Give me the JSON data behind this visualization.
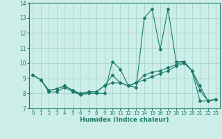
{
  "title": "",
  "xlabel": "Humidex (Indice chaleur)",
  "ylabel": "",
  "bg_color": "#cceee8",
  "line_color": "#1a7a6a",
  "grid_color": "#aad4cc",
  "xlim": [
    -0.5,
    23.5
  ],
  "ylim": [
    7,
    14
  ],
  "yticks": [
    7,
    8,
    9,
    10,
    11,
    12,
    13,
    14
  ],
  "xticks": [
    0,
    1,
    2,
    3,
    4,
    5,
    6,
    7,
    8,
    9,
    10,
    11,
    12,
    13,
    14,
    15,
    16,
    17,
    18,
    19,
    20,
    21,
    22,
    23
  ],
  "series": [
    [
      9.2,
      8.9,
      8.1,
      8.1,
      8.4,
      8.1,
      7.9,
      8.0,
      8.0,
      8.0,
      10.1,
      9.6,
      8.5,
      8.4,
      13.0,
      13.6,
      10.9,
      13.6,
      10.1,
      10.1,
      9.5,
      7.5,
      7.5,
      7.6
    ],
    [
      9.2,
      8.9,
      8.2,
      8.3,
      8.5,
      8.2,
      8.0,
      8.1,
      8.1,
      8.5,
      9.2,
      8.7,
      8.5,
      8.7,
      9.2,
      9.4,
      9.5,
      9.7,
      9.9,
      10.1,
      9.5,
      8.5,
      7.5,
      7.6
    ],
    [
      9.2,
      8.9,
      8.2,
      8.3,
      8.5,
      8.2,
      7.9,
      8.1,
      8.1,
      8.5,
      8.7,
      8.7,
      8.5,
      8.7,
      8.9,
      9.1,
      9.3,
      9.5,
      9.8,
      10.0,
      9.5,
      8.2,
      7.5,
      7.6
    ]
  ]
}
